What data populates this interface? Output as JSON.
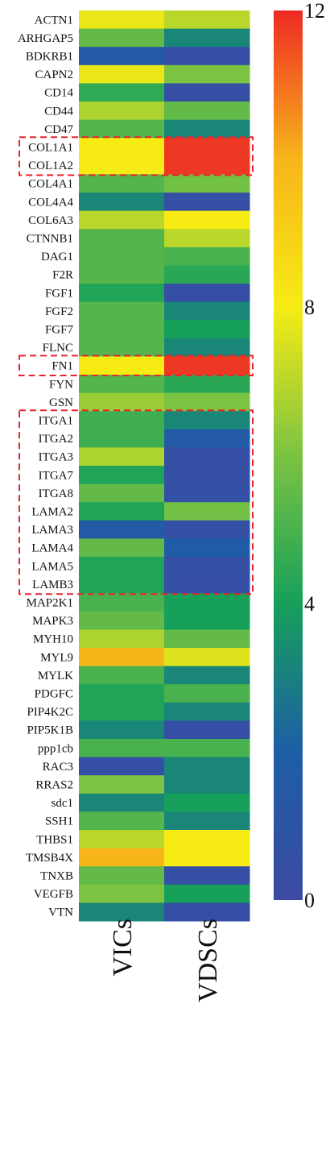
{
  "chart_data": {
    "type": "heatmap",
    "columns": [
      "VICs",
      "VDSCs"
    ],
    "rows": [
      "ACTN1",
      "ARHGAP5",
      "BDKRB1",
      "CAPN2",
      "CD14",
      "CD44",
      "CD47",
      "COL1A1",
      "COL1A2",
      "COL4A1",
      "COL4A4",
      "COL6A3",
      "CTNNB1",
      "DAG1",
      "F2R",
      "FGF1",
      "FGF2",
      "FGF7",
      "FLNC",
      "FN1",
      "FYN",
      "GSN",
      "ITGA1",
      "ITGA2",
      "ITGA3",
      "ITGA7",
      "ITGA8",
      "LAMA2",
      "LAMA3",
      "LAMA4",
      "LAMA5",
      "LAMB3",
      "MAP2K1",
      "MAPK3",
      "MYH10",
      "MYL9",
      "MYLK",
      "PDGFC",
      "PIP4K2C",
      "PIP5K1B",
      "ppp1cb",
      "RAC3",
      "RRAS2",
      "sdc1",
      "SSH1",
      "THBS1",
      "TMSB4X",
      "TNXB",
      "VEGFB",
      "VTN"
    ],
    "values": [
      [
        7.8,
        7.0
      ],
      [
        5.5,
        3.2
      ],
      [
        1.6,
        0.5
      ],
      [
        7.8,
        6.0
      ],
      [
        4.5,
        0.5
      ],
      [
        6.8,
        5.5
      ],
      [
        5.2,
        3.2
      ],
      [
        8.0,
        11.8
      ],
      [
        8.0,
        11.8
      ],
      [
        5.2,
        5.8
      ],
      [
        3.2,
        0.5
      ],
      [
        7.0,
        8.0
      ],
      [
        5.2,
        7.0
      ],
      [
        5.2,
        5.0
      ],
      [
        5.2,
        4.4
      ],
      [
        4.2,
        0.5
      ],
      [
        5.2,
        3.2
      ],
      [
        5.2,
        4.0
      ],
      [
        5.2,
        3.2
      ],
      [
        8.0,
        11.8
      ],
      [
        5.2,
        4.4
      ],
      [
        6.5,
        6.0
      ],
      [
        4.8,
        3.2
      ],
      [
        4.8,
        1.6
      ],
      [
        6.8,
        0.5
      ],
      [
        4.2,
        0.5
      ],
      [
        5.5,
        0.6
      ],
      [
        4.2,
        5.8
      ],
      [
        1.6,
        0.6
      ],
      [
        5.5,
        1.8
      ],
      [
        4.2,
        0.6
      ],
      [
        4.2,
        0.5
      ],
      [
        5.0,
        4.0
      ],
      [
        5.5,
        4.0
      ],
      [
        6.8,
        5.5
      ],
      [
        10.0,
        7.6
      ],
      [
        5.0,
        3.2
      ],
      [
        4.2,
        5.0
      ],
      [
        4.2,
        3.2
      ],
      [
        3.2,
        0.5
      ],
      [
        5.0,
        5.0
      ],
      [
        0.5,
        3.2
      ],
      [
        6.0,
        3.2
      ],
      [
        3.2,
        4.0
      ],
      [
        5.2,
        3.2
      ],
      [
        7.0,
        8.0
      ],
      [
        10.0,
        8.0
      ],
      [
        5.5,
        0.5
      ],
      [
        6.0,
        4.0
      ],
      [
        3.2,
        0.5
      ]
    ],
    "colorbar": {
      "min": 0,
      "max": 12,
      "ticks": [
        0,
        4,
        8,
        12
      ]
    },
    "colormap": [
      "#3c4aa3",
      "#1d5ea6",
      "#16a05a",
      "#7cc342",
      "#f6eb14",
      "#f7b51a",
      "#ee2a24"
    ],
    "highlight_colors": {
      "box": "#e8232a"
    },
    "highlight_groups": [
      [
        "COL1A1",
        "COL1A2"
      ],
      [
        "FN1"
      ],
      [
        "ITGA1",
        "ITGA2",
        "ITGA3",
        "ITGA7",
        "ITGA8",
        "LAMA2",
        "LAMA3",
        "LAMA4",
        "LAMA5",
        "LAMB3"
      ]
    ]
  }
}
